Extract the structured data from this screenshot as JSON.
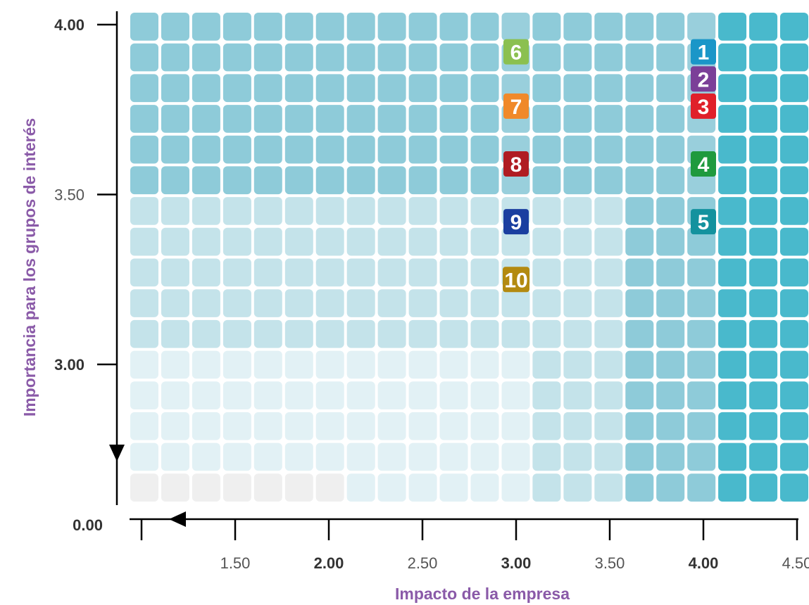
{
  "chart_data": {
    "type": "heatmap",
    "xlabel": "Impacto de la empresa",
    "ylabel": "Importancia para los grupos de interés",
    "xlim": [
      1.0,
      4.5
    ],
    "ylim": [
      2.7,
      4.0
    ],
    "grid": {
      "cols": 22,
      "rows": 16
    },
    "x_ticks": [
      {
        "value": 1.5,
        "label": "1.50",
        "bold": false
      },
      {
        "value": 2.0,
        "label": "2.00",
        "bold": true
      },
      {
        "value": 2.5,
        "label": "2.50",
        "bold": false
      },
      {
        "value": 3.0,
        "label": "3.00",
        "bold": true
      },
      {
        "value": 3.5,
        "label": "3.50",
        "bold": false
      },
      {
        "value": 4.0,
        "label": "4.00",
        "bold": true
      },
      {
        "value": 4.5,
        "label": "4.50",
        "bold": false
      }
    ],
    "y_ticks": [
      {
        "value": 4.0,
        "label": "4.00",
        "bold": true
      },
      {
        "value": 3.5,
        "label": "3.50",
        "bold": false
      },
      {
        "value": 3.0,
        "label": "3.00",
        "bold": true
      }
    ],
    "origin_label": "0.00",
    "points": [
      {
        "label": "1",
        "x": 4.0,
        "y": 3.92,
        "color": "#1a96c8"
      },
      {
        "label": "2",
        "x": 4.0,
        "y": 3.84,
        "color": "#7b3f98"
      },
      {
        "label": "3",
        "x": 4.0,
        "y": 3.76,
        "color": "#e0202a"
      },
      {
        "label": "4",
        "x": 4.0,
        "y": 3.59,
        "color": "#1f9a3e"
      },
      {
        "label": "5",
        "x": 4.0,
        "y": 3.42,
        "color": "#14929e"
      },
      {
        "label": "6",
        "x": 3.0,
        "y": 3.92,
        "color": "#8bc050"
      },
      {
        "label": "7",
        "x": 3.0,
        "y": 3.76,
        "color": "#f0892a"
      },
      {
        "label": "8",
        "x": 3.0,
        "y": 3.59,
        "color": "#b01c22"
      },
      {
        "label": "9",
        "x": 3.0,
        "y": 3.42,
        "color": "#1a3fa0"
      },
      {
        "label": "10",
        "x": 3.0,
        "y": 3.25,
        "color": "#b38a10"
      }
    ],
    "colors": {
      "axis_title": "#8a5aa8",
      "level_0": "#efefef",
      "level_1": "#e2f1f5",
      "level_2": "#c4e3ea",
      "level_3": "#99cfdc",
      "level_4": "#8ecbd9",
      "level_5": "#49b9cc"
    }
  }
}
